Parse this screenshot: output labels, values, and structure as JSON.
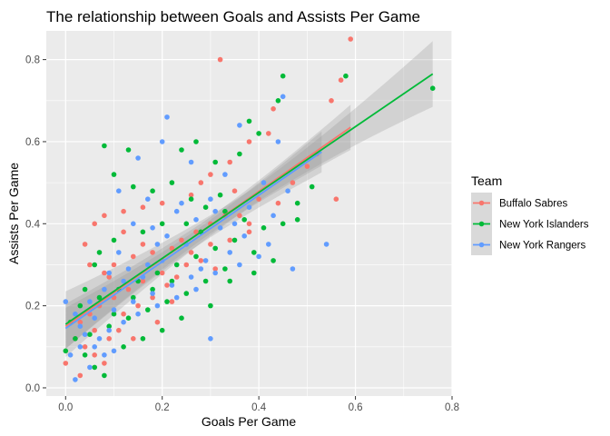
{
  "chart_data": {
    "type": "scatter",
    "title": "The relationship between Goals and Assists Per Game",
    "xlabel": "Goals Per Game",
    "ylabel": "Assists Per Game",
    "xlim": [
      -0.04,
      0.8
    ],
    "ylim": [
      -0.02,
      0.87
    ],
    "x_ticks": [
      0.0,
      0.2,
      0.4,
      0.6,
      0.8
    ],
    "x_tick_labels": [
      "0.0",
      "0.2",
      "0.4",
      "0.6",
      "0.8"
    ],
    "y_ticks": [
      0.0,
      0.2,
      0.4,
      0.6,
      0.8
    ],
    "y_tick_labels": [
      "0.0",
      "0.2",
      "0.4",
      "0.6",
      "0.8"
    ],
    "grid": true,
    "legend": {
      "title": "Team",
      "position": "right"
    },
    "series": [
      {
        "name": "Buffalo Sabres",
        "color": "#F8766D",
        "trend": {
          "x": [
            0.0,
            0.59
          ],
          "y": [
            0.15,
            0.635
          ],
          "band": [
            0.02,
            0.055
          ]
        },
        "points": [
          [
            0.32,
            0.8
          ],
          [
            0.59,
            0.85
          ],
          [
            0.57,
            0.75
          ],
          [
            0.55,
            0.7
          ],
          [
            0.43,
            0.68
          ],
          [
            0.42,
            0.62
          ],
          [
            0.38,
            0.6
          ],
          [
            0.34,
            0.55
          ],
          [
            0.3,
            0.52
          ],
          [
            0.28,
            0.5
          ],
          [
            0.35,
            0.48
          ],
          [
            0.4,
            0.46
          ],
          [
            0.56,
            0.46
          ],
          [
            0.26,
            0.47
          ],
          [
            0.2,
            0.45
          ],
          [
            0.16,
            0.44
          ],
          [
            0.12,
            0.43
          ],
          [
            0.08,
            0.42
          ],
          [
            0.06,
            0.4
          ],
          [
            0.04,
            0.35
          ],
          [
            0.05,
            0.3
          ],
          [
            0.08,
            0.28
          ],
          [
            0.1,
            0.3
          ],
          [
            0.14,
            0.32
          ],
          [
            0.18,
            0.33
          ],
          [
            0.22,
            0.34
          ],
          [
            0.24,
            0.36
          ],
          [
            0.27,
            0.38
          ],
          [
            0.3,
            0.4
          ],
          [
            0.33,
            0.42
          ],
          [
            0.36,
            0.42
          ],
          [
            0.38,
            0.4
          ],
          [
            0.25,
            0.3
          ],
          [
            0.2,
            0.28
          ],
          [
            0.16,
            0.26
          ],
          [
            0.13,
            0.24
          ],
          [
            0.1,
            0.22
          ],
          [
            0.07,
            0.2
          ],
          [
            0.05,
            0.18
          ],
          [
            0.03,
            0.16
          ],
          [
            0.02,
            0.12
          ],
          [
            0.04,
            0.1
          ],
          [
            0.06,
            0.08
          ],
          [
            0.08,
            0.06
          ],
          [
            0.03,
            0.03
          ],
          [
            0.0,
            0.06
          ],
          [
            0.12,
            0.18
          ],
          [
            0.15,
            0.2
          ],
          [
            0.18,
            0.22
          ],
          [
            0.21,
            0.25
          ],
          [
            0.23,
            0.27
          ],
          [
            0.28,
            0.31
          ],
          [
            0.3,
            0.35
          ],
          [
            0.34,
            0.36
          ],
          [
            0.38,
            0.38
          ],
          [
            0.44,
            0.45
          ],
          [
            0.47,
            0.5
          ],
          [
            0.5,
            0.54
          ],
          [
            0.52,
            0.57
          ],
          [
            0.26,
            0.33
          ],
          [
            0.11,
            0.14
          ],
          [
            0.09,
            0.12
          ],
          [
            0.06,
            0.14
          ],
          [
            0.14,
            0.12
          ],
          [
            0.19,
            0.16
          ],
          [
            0.22,
            0.21
          ],
          [
            0.16,
            0.35
          ],
          [
            0.12,
            0.38
          ],
          [
            0.09,
            0.27
          ],
          [
            0.31,
            0.29
          ]
        ]
      },
      {
        "name": "New York Islanders",
        "color": "#00BA38",
        "trend": {
          "x": [
            0.0,
            0.76
          ],
          "y": [
            0.155,
            0.765
          ],
          "band": [
            0.02,
            0.08
          ]
        },
        "points": [
          [
            0.76,
            0.73
          ],
          [
            0.58,
            0.76
          ],
          [
            0.45,
            0.76
          ],
          [
            0.44,
            0.7
          ],
          [
            0.38,
            0.65
          ],
          [
            0.4,
            0.62
          ],
          [
            0.08,
            0.59
          ],
          [
            0.27,
            0.6
          ],
          [
            0.13,
            0.58
          ],
          [
            0.24,
            0.58
          ],
          [
            0.31,
            0.55
          ],
          [
            0.36,
            0.57
          ],
          [
            0.51,
            0.49
          ],
          [
            0.48,
            0.45
          ],
          [
            0.1,
            0.52
          ],
          [
            0.14,
            0.49
          ],
          [
            0.18,
            0.48
          ],
          [
            0.22,
            0.5
          ],
          [
            0.26,
            0.46
          ],
          [
            0.29,
            0.44
          ],
          [
            0.33,
            0.43
          ],
          [
            0.37,
            0.41
          ],
          [
            0.41,
            0.39
          ],
          [
            0.35,
            0.36
          ],
          [
            0.31,
            0.34
          ],
          [
            0.27,
            0.32
          ],
          [
            0.23,
            0.3
          ],
          [
            0.19,
            0.28
          ],
          [
            0.15,
            0.26
          ],
          [
            0.11,
            0.24
          ],
          [
            0.07,
            0.22
          ],
          [
            0.04,
            0.24
          ],
          [
            0.03,
            0.2
          ],
          [
            0.01,
            0.16
          ],
          [
            0.02,
            0.12
          ],
          [
            0.04,
            0.08
          ],
          [
            0.06,
            0.05
          ],
          [
            0.08,
            0.03
          ],
          [
            0.0,
            0.09
          ],
          [
            0.05,
            0.13
          ],
          [
            0.09,
            0.15
          ],
          [
            0.13,
            0.17
          ],
          [
            0.17,
            0.19
          ],
          [
            0.21,
            0.21
          ],
          [
            0.25,
            0.23
          ],
          [
            0.29,
            0.26
          ],
          [
            0.33,
            0.29
          ],
          [
            0.39,
            0.33
          ],
          [
            0.3,
            0.2
          ],
          [
            0.24,
            0.17
          ],
          [
            0.2,
            0.14
          ],
          [
            0.16,
            0.12
          ],
          [
            0.12,
            0.1
          ],
          [
            0.28,
            0.38
          ],
          [
            0.2,
            0.4
          ],
          [
            0.16,
            0.38
          ],
          [
            0.1,
            0.36
          ],
          [
            0.07,
            0.33
          ],
          [
            0.06,
            0.3
          ],
          [
            0.34,
            0.26
          ],
          [
            0.43,
            0.31
          ],
          [
            0.45,
            0.4
          ],
          [
            0.48,
            0.41
          ],
          [
            0.39,
            0.28
          ],
          [
            0.25,
            0.4
          ],
          [
            0.14,
            0.22
          ],
          [
            0.18,
            0.24
          ],
          [
            0.22,
            0.26
          ],
          [
            0.1,
            0.18
          ],
          [
            0.32,
            0.47
          ]
        ]
      },
      {
        "name": "New York Rangers",
        "color": "#619CFF",
        "trend": {
          "x": [
            0.0,
            0.53
          ],
          "y": [
            0.145,
            0.575
          ],
          "band": [
            0.02,
            0.05
          ]
        },
        "points": [
          [
            0.45,
            0.71
          ],
          [
            0.36,
            0.64
          ],
          [
            0.21,
            0.66
          ],
          [
            0.2,
            0.6
          ],
          [
            0.15,
            0.56
          ],
          [
            0.26,
            0.55
          ],
          [
            0.33,
            0.52
          ],
          [
            0.41,
            0.5
          ],
          [
            0.46,
            0.48
          ],
          [
            0.47,
            0.29
          ],
          [
            0.54,
            0.35
          ],
          [
            0.3,
            0.12
          ],
          [
            0.11,
            0.48
          ],
          [
            0.17,
            0.46
          ],
          [
            0.23,
            0.43
          ],
          [
            0.27,
            0.41
          ],
          [
            0.32,
            0.39
          ],
          [
            0.37,
            0.37
          ],
          [
            0.42,
            0.35
          ],
          [
            0.36,
            0.3
          ],
          [
            0.31,
            0.28
          ],
          [
            0.26,
            0.27
          ],
          [
            0.22,
            0.25
          ],
          [
            0.18,
            0.23
          ],
          [
            0.14,
            0.21
          ],
          [
            0.1,
            0.19
          ],
          [
            0.06,
            0.17
          ],
          [
            0.03,
            0.15
          ],
          [
            0.0,
            0.21
          ],
          [
            0.02,
            0.18
          ],
          [
            0.04,
            0.13
          ],
          [
            0.06,
            0.1
          ],
          [
            0.08,
            0.08
          ],
          [
            0.05,
            0.05
          ],
          [
            0.02,
            0.02
          ],
          [
            0.01,
            0.08
          ],
          [
            0.07,
            0.12
          ],
          [
            0.09,
            0.14
          ],
          [
            0.12,
            0.16
          ],
          [
            0.15,
            0.18
          ],
          [
            0.19,
            0.2
          ],
          [
            0.23,
            0.22
          ],
          [
            0.27,
            0.24
          ],
          [
            0.29,
            0.31
          ],
          [
            0.25,
            0.35
          ],
          [
            0.21,
            0.37
          ],
          [
            0.18,
            0.39
          ],
          [
            0.14,
            0.4
          ],
          [
            0.11,
            0.33
          ],
          [
            0.09,
            0.28
          ],
          [
            0.13,
            0.29
          ],
          [
            0.24,
            0.45
          ],
          [
            0.3,
            0.46
          ],
          [
            0.38,
            0.44
          ],
          [
            0.43,
            0.42
          ],
          [
            0.34,
            0.33
          ],
          [
            0.4,
            0.32
          ],
          [
            0.17,
            0.3
          ],
          [
            0.08,
            0.24
          ],
          [
            0.05,
            0.21
          ],
          [
            0.12,
            0.26
          ],
          [
            0.16,
            0.27
          ],
          [
            0.2,
            0.31
          ],
          [
            0.28,
            0.29
          ],
          [
            0.35,
            0.4
          ],
          [
            0.44,
            0.6
          ],
          [
            0.31,
            0.43
          ],
          [
            0.19,
            0.35
          ],
          [
            0.03,
            0.1
          ],
          [
            0.1,
            0.09
          ]
        ]
      }
    ]
  }
}
